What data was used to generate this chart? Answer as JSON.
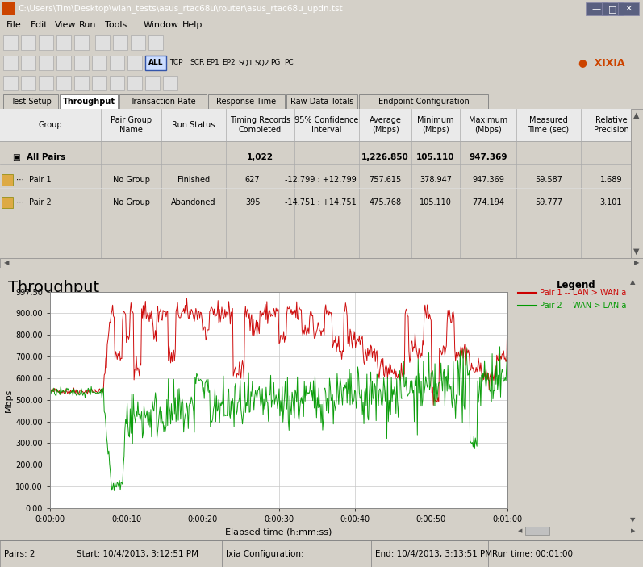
{
  "title_bar": "C:\\Users\\Tim\\Desktop\\wlan_tests\\asus_rtac68u\\router\\asus_rtac68u_updn.tst",
  "menu_items": [
    "File",
    "Edit",
    "View",
    "Run",
    "Tools",
    "Window",
    "Help"
  ],
  "tabs": [
    "Test Setup",
    "Throughput",
    "Transaction Rate",
    "Response Time",
    "Raw Data Totals",
    "Endpoint Configuration"
  ],
  "active_tab": "Throughput",
  "all_pairs_timing": "1,022",
  "all_pairs_avg": "1,226.850",
  "all_pairs_min": "105.110",
  "all_pairs_max": "947.369",
  "pair1_name": "No Group",
  "pair1_status": "Finished",
  "pair1_timing": "627",
  "pair1_ci": "-12.799 : +12.799",
  "pair1_avg": "757.615",
  "pair1_min": "378.947",
  "pair1_max": "947.369",
  "pair1_time": "59.587",
  "pair1_rp": "1.689",
  "pair2_name": "No Group",
  "pair2_status": "Abandoned",
  "pair2_timing": "395",
  "pair2_ci": "-14.751 : +14.751",
  "pair2_avg": "475.768",
  "pair2_min": "105.110",
  "pair2_max": "774.194",
  "pair2_time": "59.777",
  "pair2_rp": "3.101",
  "chart_title": "Throughput",
  "ylabel": "Mbps",
  "xlabel": "Elapsed time (h:mm:ss)",
  "ylim": [
    0.0,
    997.5
  ],
  "yticks": [
    0.0,
    100.0,
    200.0,
    300.0,
    400.0,
    500.0,
    600.0,
    700.0,
    800.0,
    900.0,
    997.5
  ],
  "ytick_labels": [
    "0.00",
    "100.00",
    "200.00",
    "300.00",
    "400.00",
    "500.00",
    "600.00",
    "700.00",
    "800.00",
    "900.00",
    "997.50"
  ],
  "xtick_labels": [
    "0:00:00",
    "0:00:10",
    "0:00:20",
    "0:00:30",
    "0:00:40",
    "0:00:50",
    "0:01:00"
  ],
  "legend_entries": [
    "Pair 1 -- LAN > WAN a",
    "Pair 2 -- WAN > LAN a"
  ],
  "legend_colors": [
    "#cc0000",
    "#009900"
  ],
  "bg_color": "#d4d0c8",
  "chart_bg": "#ffffff",
  "grid_color": "#c8c8c8",
  "titlebar_color": "#0a246a",
  "status_bar": [
    "Pairs: 2",
    "Start: 10/4/2013, 3:12:51 PM",
    "Ixia Configuration:",
    "End: 10/4/2013, 3:13:51 PM",
    "Run time: 00:01:00"
  ],
  "random_seed": 42,
  "total_points": 600
}
